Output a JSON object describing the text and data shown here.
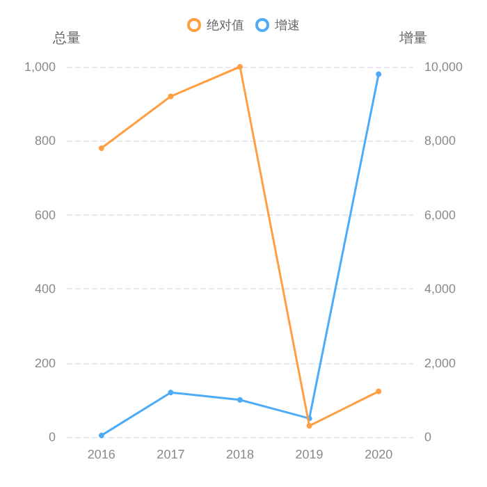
{
  "chart_data": {
    "type": "line",
    "ylabel": "总量",
    "y2label": "增量",
    "categories": [
      "2016",
      "2017",
      "2018",
      "2019",
      "2020"
    ],
    "series": [
      {
        "name": "绝对值",
        "color": "#ff9f40",
        "values": [
          780,
          920,
          1000,
          30,
          123
        ]
      },
      {
        "name": "增速",
        "color": "#4dabf7",
        "axis": "y2",
        "values": [
          40,
          1200,
          1000,
          500,
          9800
        ]
      }
    ],
    "ylim": [
      0,
      1000
    ],
    "yticks": [
      0,
      200,
      400,
      600,
      800,
      {
        "value": 1000,
        "label": "1,000"
      }
    ],
    "y2lim": [
      0,
      10000
    ],
    "y2ticks": [
      0,
      {
        "value": 2000,
        "label": "2,000"
      },
      {
        "value": 4000,
        "label": "4,000"
      },
      {
        "value": 6000,
        "label": "6,000"
      },
      {
        "value": 8000,
        "label": "8,000"
      },
      {
        "value": 10000,
        "label": "10,000"
      }
    ],
    "grid": "y",
    "legend": "top",
    "marker": "circle",
    "line_style": "solid"
  }
}
